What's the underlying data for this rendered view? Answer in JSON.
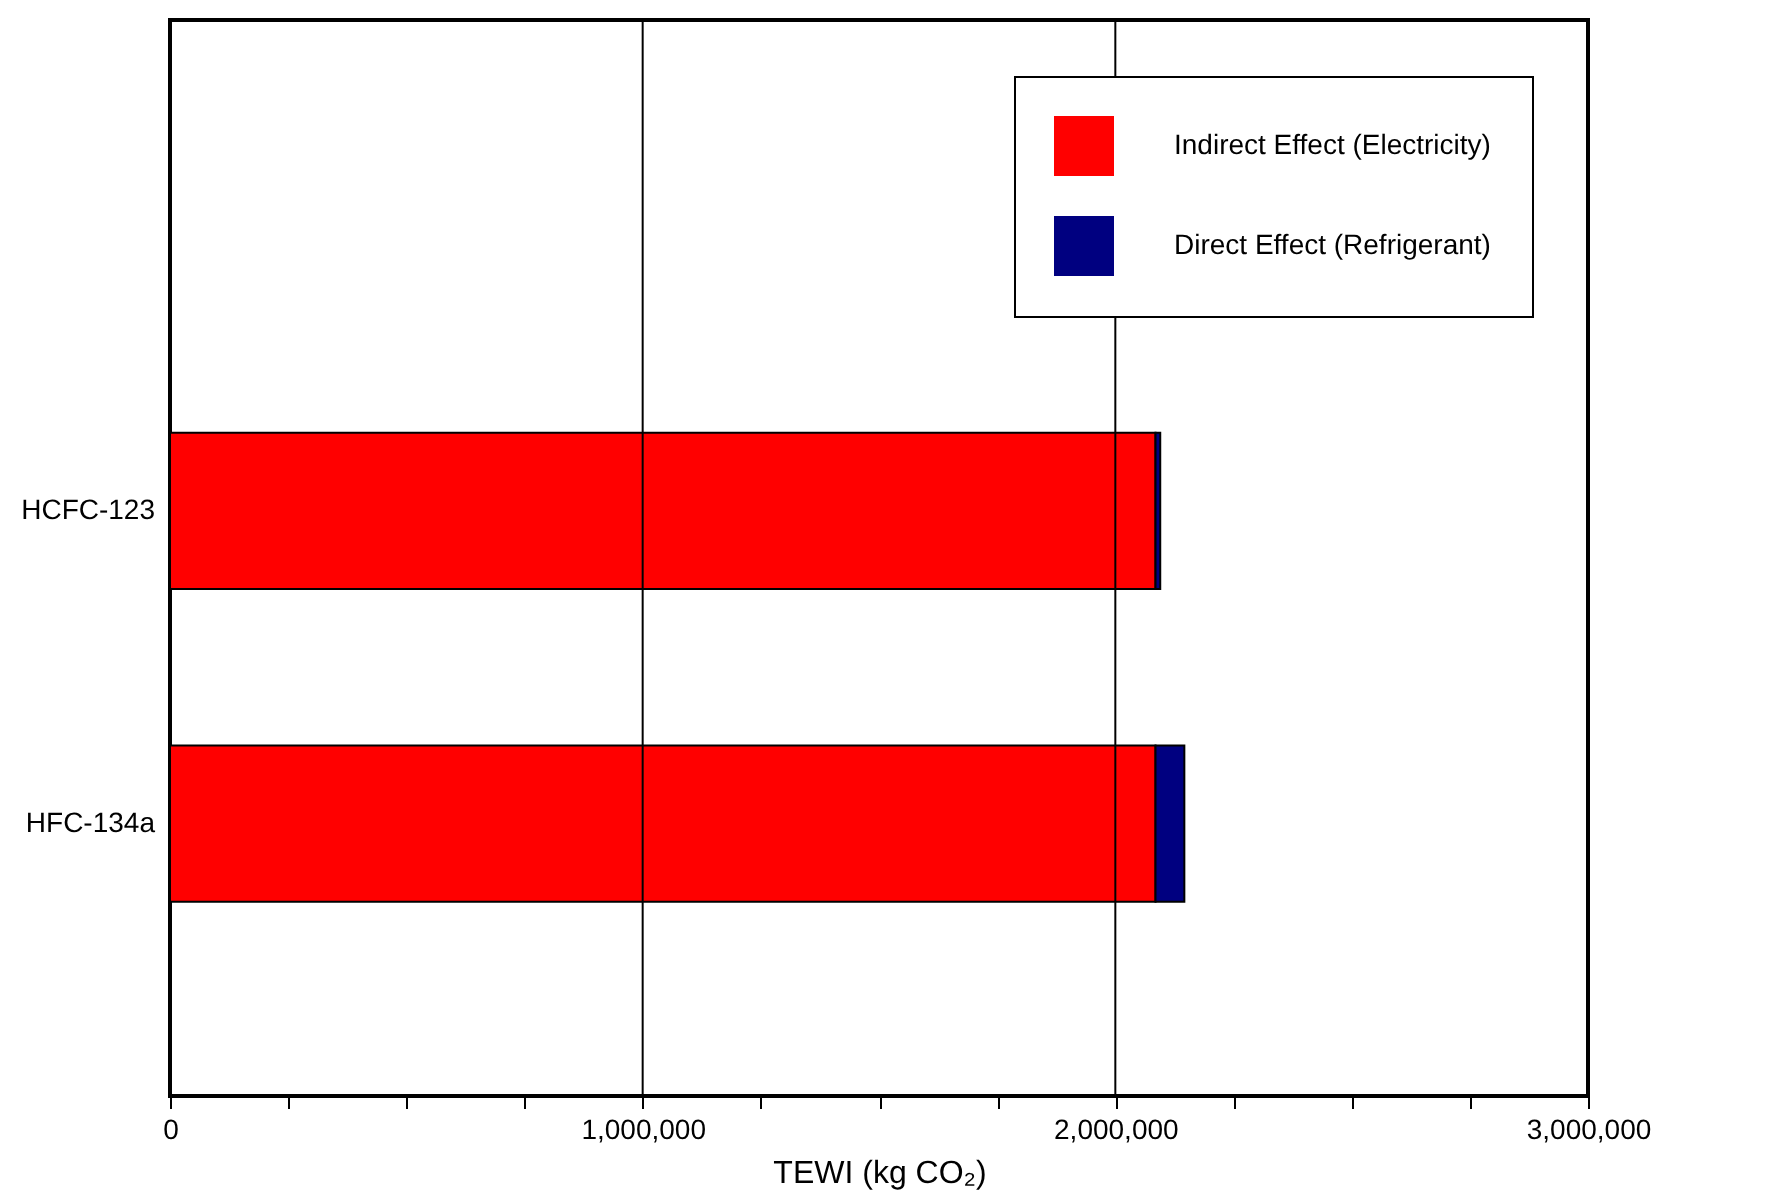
{
  "chart_data": {
    "type": "bar",
    "orientation": "horizontal",
    "stacked": true,
    "xlabel": "TEWI (kg CO₂)",
    "categories": [
      "HCFC-123",
      "HFC-134a"
    ],
    "series": [
      {
        "name": "Indirect Effect (Electricity)",
        "color": "#ff0000",
        "values": [
          2085000,
          2085000
        ]
      },
      {
        "name": "Direct Effect (Refrigerant)",
        "color": "#000080",
        "values": [
          10000,
          61000
        ]
      }
    ],
    "xlim": [
      0,
      3000000
    ],
    "xticks": [
      {
        "value": 0,
        "label": "0"
      },
      {
        "value": 250000,
        "label": null
      },
      {
        "value": 500000,
        "label": null
      },
      {
        "value": 750000,
        "label": null
      },
      {
        "value": 1000000,
        "label": "1,000,000"
      },
      {
        "value": 1250000,
        "label": null
      },
      {
        "value": 1500000,
        "label": null
      },
      {
        "value": 1750000,
        "label": null
      },
      {
        "value": 2000000,
        "label": "2,000,000"
      },
      {
        "value": 2250000,
        "label": null
      },
      {
        "value": 2500000,
        "label": null
      },
      {
        "value": 2750000,
        "label": null
      },
      {
        "value": 3000000,
        "label": "3,000,000"
      }
    ],
    "grid": "x",
    "legend": "top right"
  }
}
